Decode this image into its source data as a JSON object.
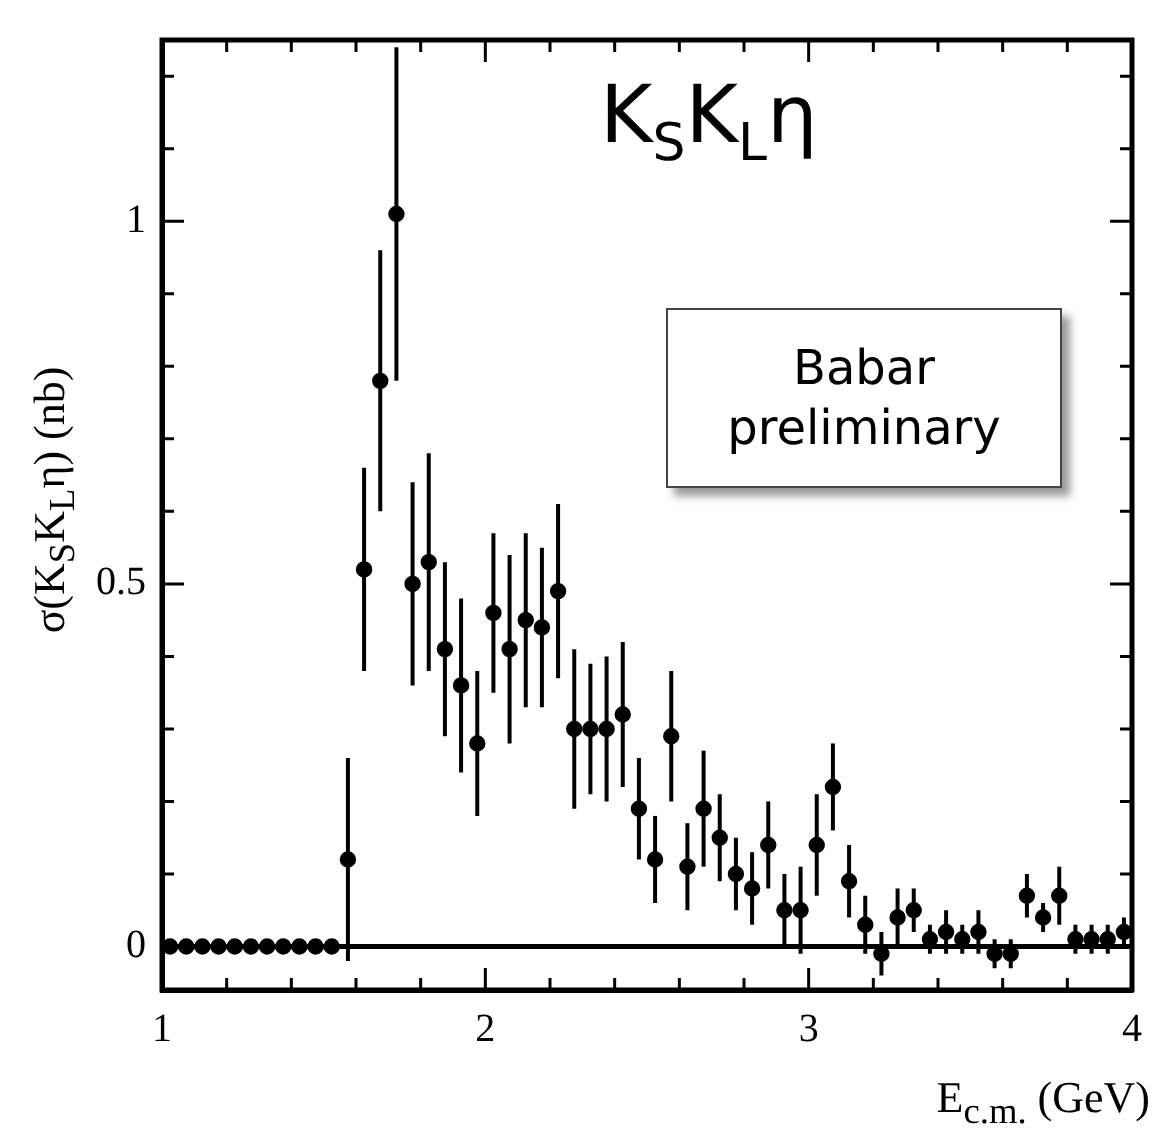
{
  "chart_data": {
    "type": "scatter",
    "xlabel": "E$_{c.m.}$ (GeV)",
    "ylabel": "σ(K$_{S}$K$_{L}$η) (nb)",
    "annotations": [
      "K$_{S}$K$_{L}$η",
      "Babar preliminary"
    ],
    "xlim": [
      1,
      4
    ],
    "xticks": [
      1,
      {
        "value": 1.2,
        "label": null
      },
      {
        "value": 1.4,
        "label": null
      },
      {
        "value": 1.6,
        "label": null
      },
      {
        "value": 1.8,
        "label": null
      },
      2,
      {
        "value": 2.2,
        "label": null
      },
      {
        "value": 2.4,
        "label": null
      },
      {
        "value": 2.6,
        "label": null
      },
      {
        "value": 2.8,
        "label": null
      },
      3,
      {
        "value": 3.2,
        "label": null
      },
      {
        "value": 3.4,
        "label": null
      },
      {
        "value": 3.6,
        "label": null
      },
      {
        "value": 3.8,
        "label": null
      },
      4
    ],
    "ylim": [
      -0.06,
      1.25
    ],
    "yticks": [
      0,
      {
        "value": 0.1,
        "label": null
      },
      {
        "value": 0.2,
        "label": null
      },
      {
        "value": 0.3,
        "label": null
      },
      {
        "value": 0.4,
        "label": null
      },
      0.5,
      {
        "value": 0.6,
        "label": null
      },
      {
        "value": 0.7,
        "label": null
      },
      {
        "value": 0.8,
        "label": null
      },
      {
        "value": 0.9,
        "label": null
      },
      1,
      {
        "value": 1.1,
        "label": null
      },
      {
        "value": 1.2,
        "label": null
      }
    ],
    "grid": false,
    "legend": false,
    "marker": "circle",
    "ref_lines": [
      {
        "axis": "y",
        "value": 0,
        "color": "#000000"
      }
    ],
    "series": [
      {
        "color": "#000000",
        "x": [
          1.025,
          1.075,
          1.125,
          1.175,
          1.225,
          1.275,
          1.325,
          1.375,
          1.425,
          1.475,
          1.525,
          1.575,
          1.625,
          1.675,
          1.725,
          1.775,
          1.825,
          1.875,
          1.925,
          1.975,
          2.025,
          2.075,
          2.125,
          2.175,
          2.225,
          2.275,
          2.325,
          2.375,
          2.425,
          2.475,
          2.525,
          2.575,
          2.625,
          2.675,
          2.725,
          2.775,
          2.825,
          2.875,
          2.925,
          2.975,
          3.025,
          3.075,
          3.125,
          3.175,
          3.225,
          3.275,
          3.325,
          3.375,
          3.425,
          3.475,
          3.525,
          3.575,
          3.625,
          3.675,
          3.725,
          3.775,
          3.825,
          3.875,
          3.925,
          3.975
        ],
        "values": [
          0,
          0,
          0,
          0,
          0,
          0,
          0,
          0,
          0,
          0,
          0,
          0.12,
          0.52,
          0.78,
          1.01,
          0.5,
          0.53,
          0.41,
          0.36,
          0.28,
          0.46,
          0.41,
          0.45,
          0.44,
          0.49,
          0.3,
          0.3,
          0.3,
          0.32,
          0.19,
          0.12,
          0.29,
          0.11,
          0.19,
          0.15,
          0.1,
          0.08,
          0.14,
          0.05,
          0.05,
          0.14,
          0.22,
          0.09,
          0.03,
          -0.01,
          0.04,
          0.05,
          0.01,
          0.02,
          0.01,
          0.02,
          -0.01,
          -0.01,
          0.07,
          0.04,
          0.07,
          0.01,
          0.01,
          0.01,
          0.02
        ],
        "errors": [
          null,
          null,
          null,
          null,
          null,
          null,
          null,
          null,
          null,
          null,
          null,
          0.14,
          0.14,
          0.18,
          0.23,
          0.14,
          0.15,
          0.12,
          0.12,
          0.1,
          0.11,
          0.13,
          0.12,
          0.11,
          0.12,
          0.11,
          0.09,
          0.1,
          0.1,
          0.07,
          0.06,
          0.09,
          0.06,
          0.08,
          0.06,
          0.05,
          0.05,
          0.06,
          0.05,
          0.06,
          0.07,
          0.06,
          0.05,
          0.04,
          0.03,
          0.04,
          0.03,
          0.02,
          0.03,
          0.02,
          0.03,
          0.02,
          0.02,
          0.03,
          0.02,
          0.04,
          0.02,
          0.02,
          0.02,
          0.02
        ]
      }
    ]
  }
}
